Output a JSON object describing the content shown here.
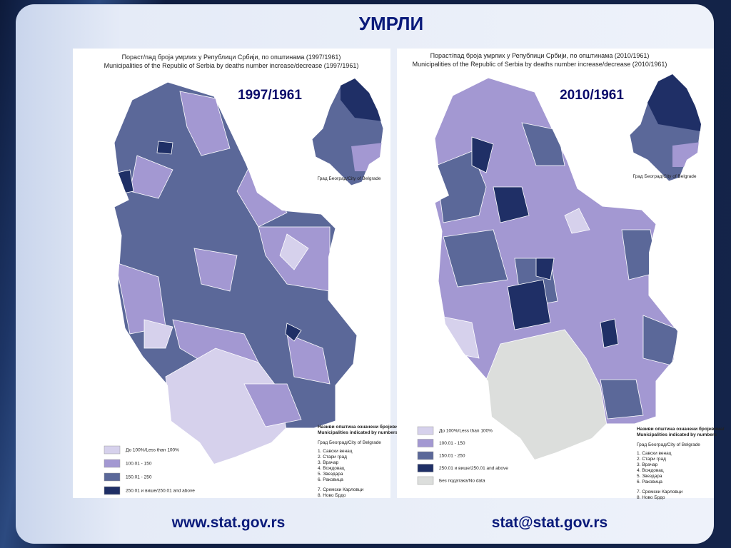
{
  "title": "УМРЛИ",
  "maps": [
    {
      "heading": [
        "Пораст/пад броја умрлих у Републици Србији, по општинама (1997/1961)",
        "Municipalities of the Republic of Serbia by deaths number increase/decrease (1997/1961)"
      ],
      "period": "1997/1961",
      "inset_label": "Град Београд/City of Belgrade",
      "legend": [
        {
          "label": "До 100%/Less than 100%",
          "color": "#d6d1ec"
        },
        {
          "label": "100.01 - 150",
          "color": "#a398d2"
        },
        {
          "label": "150.01 - 250",
          "color": "#5b6899"
        },
        {
          "label": "250.01 и више/250.01 and above",
          "color": "#1f2f66"
        }
      ],
      "notes_title": [
        "Називи општина означени бројевима/",
        "Municipalities indicated by numbers"
      ],
      "notes": [
        "Град Београд/City of Belgrade",
        "1. Савски венац",
        "2. Стари град",
        "3. Врачар",
        "4. Вождовац",
        "5. Звездара",
        "6. Раковица",
        "7. Сремски Карловци",
        "8. Ново Брдо"
      ]
    },
    {
      "heading": [
        "Пораст/пад броја умрлих у Републици Србији, по општинама (2010/1961)",
        "Municipalities of the Republic of Serbia by deaths number increase/decrease (2010/1961)"
      ],
      "period": "2010/1961",
      "inset_label": "Град Београд/City of Belgrade",
      "legend": [
        {
          "label": "До 100%/Less than 100%",
          "color": "#d6d1ec"
        },
        {
          "label": "100.01 - 150",
          "color": "#a398d2"
        },
        {
          "label": "150.01 - 250",
          "color": "#5b6899"
        },
        {
          "label": "250.01 и више/250.01 and above",
          "color": "#1f2f66"
        },
        {
          "label": "Без података/No data",
          "color": "#dcdedc"
        }
      ],
      "notes_title": [
        "Називи општина означени бројевима/",
        "Municipalities indicated by numbers"
      ],
      "notes": [
        "Град Београд/City of Belgrade",
        "1. Савски венац",
        "2. Стари град",
        "3. Врачар",
        "4. Вождовац",
        "5. Звездара",
        "6. Раковица",
        "7. Сремски Карловци",
        "8. Ново Брдо"
      ]
    }
  ],
  "footer": {
    "website": "www.stat.gov.rs",
    "email": "stat@stat.gov.rs"
  }
}
